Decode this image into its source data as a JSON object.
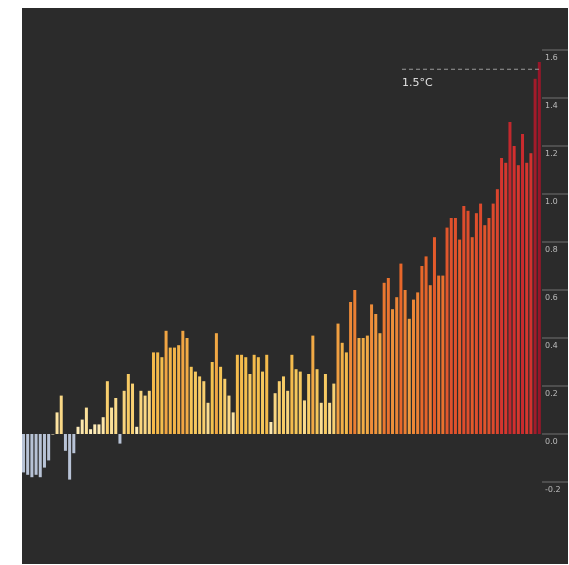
{
  "chart_data": {
    "type": "bar",
    "title": "",
    "xlabel": "",
    "ylabel": "",
    "ylim": [
      -0.3,
      1.65
    ],
    "yticks": [
      -0.2,
      0.0,
      0.2,
      0.4,
      0.6,
      0.8,
      1.0,
      1.2,
      1.4,
      1.6
    ],
    "ytick_labels": [
      "-0.2",
      "0.0",
      "0.2",
      "0.4",
      "0.6",
      "0.8",
      "1.0",
      "1.2",
      "1.4",
      "1.6"
    ],
    "grid": false,
    "axis_position": "right",
    "colors": {
      "background": "#2b2b2b",
      "negative": "#b8c3d6",
      "low": "#fff1c4",
      "mid": "#f5c24f",
      "high": "#e8682a",
      "peak": "#8e1228",
      "threshold_line": "#9a9a9a"
    },
    "values": [
      -0.16,
      -0.17,
      -0.18,
      -0.17,
      -0.18,
      -0.14,
      -0.11,
      0.0,
      0.09,
      0.16,
      -0.07,
      -0.19,
      -0.08,
      0.03,
      0.06,
      0.11,
      0.02,
      0.04,
      0.04,
      0.07,
      0.22,
      0.11,
      0.15,
      -0.04,
      0.18,
      0.25,
      0.21,
      0.03,
      0.18,
      0.16,
      0.18,
      0.34,
      0.34,
      0.32,
      0.43,
      0.36,
      0.36,
      0.37,
      0.43,
      0.4,
      0.28,
      0.26,
      0.24,
      0.22,
      0.13,
      0.3,
      0.42,
      0.28,
      0.23,
      0.16,
      0.09,
      0.33,
      0.33,
      0.32,
      0.25,
      0.33,
      0.32,
      0.26,
      0.33,
      0.05,
      0.17,
      0.22,
      0.24,
      0.18,
      0.33,
      0.27,
      0.26,
      0.14,
      0.25,
      0.41,
      0.27,
      0.13,
      0.25,
      0.13,
      0.21,
      0.46,
      0.38,
      0.34,
      0.55,
      0.6,
      0.4,
      0.4,
      0.41,
      0.54,
      0.5,
      0.42,
      0.63,
      0.65,
      0.52,
      0.57,
      0.71,
      0.6,
      0.48,
      0.56,
      0.59,
      0.7,
      0.74,
      0.62,
      0.82,
      0.66,
      0.66,
      0.86,
      0.9,
      0.9,
      0.81,
      0.95,
      0.93,
      0.82,
      0.92,
      0.96,
      0.87,
      0.9,
      0.96,
      1.02,
      1.15,
      1.13,
      1.3,
      1.2,
      1.12,
      1.25,
      1.13,
      1.17,
      1.48,
      1.55
    ],
    "threshold": {
      "value": 1.52,
      "label": "1.5°C"
    }
  }
}
